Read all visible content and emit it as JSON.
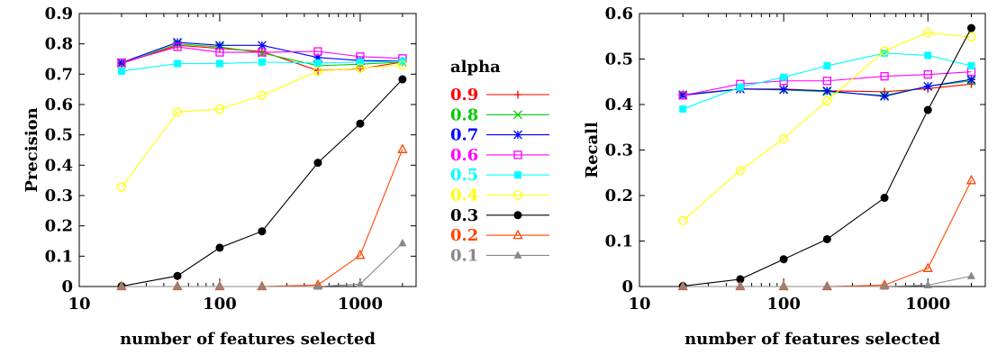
{
  "chart_data": [
    {
      "type": "line",
      "xscale": "log",
      "xlim": [
        10,
        2500
      ],
      "ylim": [
        0,
        0.9
      ],
      "x_ticks": [
        "10",
        "100",
        "1000"
      ],
      "y_ticks": [
        "0",
        "0.1",
        "0.2",
        "0.3",
        "0.4",
        "0.5",
        "0.6",
        "0.7",
        "0.8",
        "0.9"
      ],
      "xlabel": "number of features selected",
      "ylabel": "Precision",
      "x": [
        20,
        50,
        100,
        200,
        500,
        1000,
        2000
      ],
      "series": [
        {
          "name": "0.9",
          "color": "#ff0000",
          "marker": "plus",
          "values": [
            0.735,
            0.795,
            0.785,
            0.775,
            0.712,
            0.718,
            0.74
          ]
        },
        {
          "name": "0.8",
          "color": "#00cc00",
          "marker": "x",
          "values": [
            0.735,
            0.8,
            0.79,
            0.77,
            0.728,
            0.733,
            0.74
          ]
        },
        {
          "name": "0.7",
          "color": "#0000ff",
          "marker": "star",
          "values": [
            0.738,
            0.805,
            0.795,
            0.795,
            0.755,
            0.745,
            0.743
          ]
        },
        {
          "name": "0.6",
          "color": "#ff00ff",
          "marker": "square-open",
          "values": [
            0.738,
            0.79,
            0.772,
            0.772,
            0.775,
            0.758,
            0.752
          ]
        },
        {
          "name": "0.5",
          "color": "#00ffff",
          "marker": "square-filled",
          "values": [
            0.71,
            0.735,
            0.735,
            0.74,
            0.737,
            0.74,
            0.742
          ]
        },
        {
          "name": "0.4",
          "color": "#ffff00",
          "marker": "circle-open",
          "values": [
            0.328,
            0.575,
            0.585,
            0.63,
            0.71,
            0.72,
            0.73
          ]
        },
        {
          "name": "0.3",
          "color": "#000000",
          "marker": "circle-filled",
          "values": [
            0.001,
            0.035,
            0.128,
            0.182,
            0.408,
            0.537,
            0.683
          ]
        },
        {
          "name": "0.2",
          "color": "#ff4500",
          "marker": "triangle-open",
          "values": [
            0.0,
            0.0,
            0.0,
            0.0,
            0.005,
            0.103,
            0.452
          ]
        },
        {
          "name": "0.1",
          "color": "#888888",
          "marker": "triangle-filled",
          "values": [
            0.0,
            0.0,
            0.0,
            0.0,
            0.0,
            0.008,
            0.143
          ]
        }
      ]
    },
    {
      "type": "line",
      "xscale": "log",
      "xlim": [
        10,
        2500
      ],
      "ylim": [
        0,
        0.6
      ],
      "x_ticks": [
        "10",
        "100",
        "1000"
      ],
      "y_ticks": [
        "0",
        "0.1",
        "0.2",
        "0.3",
        "0.4",
        "0.5",
        "0.6"
      ],
      "xlabel": "number of features selected",
      "ylabel": "Recall",
      "x": [
        20,
        50,
        100,
        200,
        500,
        1000,
        2000
      ],
      "series": [
        {
          "name": "0.9",
          "color": "#ff0000",
          "marker": "plus",
          "values": [
            0.422,
            0.434,
            0.434,
            0.43,
            0.428,
            0.435,
            0.445
          ]
        },
        {
          "name": "0.8",
          "color": "#00cc00",
          "marker": "x",
          "values": [
            0.422,
            0.434,
            0.432,
            0.428,
            0.42,
            0.44,
            0.452
          ]
        },
        {
          "name": "0.7",
          "color": "#0000ff",
          "marker": "star",
          "values": [
            0.42,
            0.434,
            0.433,
            0.43,
            0.418,
            0.44,
            0.455
          ]
        },
        {
          "name": "0.6",
          "color": "#ff00ff",
          "marker": "square-open",
          "values": [
            0.42,
            0.445,
            0.452,
            0.452,
            0.462,
            0.466,
            0.472
          ]
        },
        {
          "name": "0.5",
          "color": "#00ffff",
          "marker": "square-filled",
          "values": [
            0.39,
            0.438,
            0.46,
            0.485,
            0.513,
            0.508,
            0.485
          ]
        },
        {
          "name": "0.4",
          "color": "#ffff00",
          "marker": "circle-open",
          "values": [
            0.145,
            0.255,
            0.325,
            0.408,
            0.518,
            0.558,
            0.548
          ]
        },
        {
          "name": "0.3",
          "color": "#000000",
          "marker": "circle-filled",
          "values": [
            0.001,
            0.016,
            0.06,
            0.104,
            0.195,
            0.388,
            0.568
          ]
        },
        {
          "name": "0.2",
          "color": "#ff4500",
          "marker": "triangle-open",
          "values": [
            0.0,
            0.0,
            0.0,
            0.0,
            0.003,
            0.04,
            0.233
          ]
        },
        {
          "name": "0.1",
          "color": "#888888",
          "marker": "triangle-filled",
          "values": [
            0.0,
            0.0,
            0.0,
            0.0,
            0.0,
            0.003,
            0.023
          ]
        }
      ]
    }
  ],
  "legend": {
    "title": "alpha",
    "entries": [
      {
        "label": "0.9",
        "color": "#ff0000",
        "marker": "plus"
      },
      {
        "label": "0.8",
        "color": "#00cc00",
        "marker": "x"
      },
      {
        "label": "0.7",
        "color": "#0000ff",
        "marker": "star"
      },
      {
        "label": "0.6",
        "color": "#ff00ff",
        "marker": "square-open"
      },
      {
        "label": "0.5",
        "color": "#00ffff",
        "marker": "square-filled"
      },
      {
        "label": "0.4",
        "color": "#ffff00",
        "marker": "circle-open"
      },
      {
        "label": "0.3",
        "color": "#000000",
        "marker": "circle-filled"
      },
      {
        "label": "0.2",
        "color": "#ff4500",
        "marker": "triangle-open"
      },
      {
        "label": "0.1",
        "color": "#888888",
        "marker": "triangle-filled"
      }
    ]
  }
}
